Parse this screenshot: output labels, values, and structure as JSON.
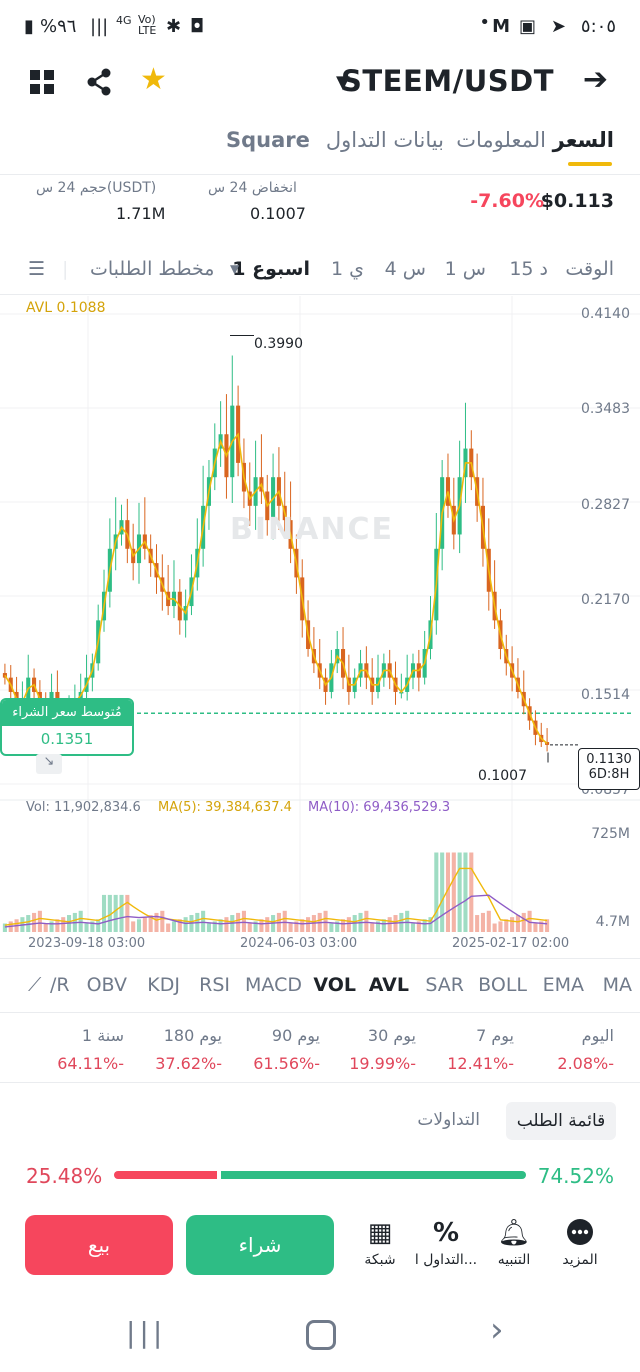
{
  "status_bar": {
    "time": "٥:٠٥",
    "battery": "%٩٦",
    "net1": "4G",
    "net2": "Vo) LTE"
  },
  "header": {
    "pair": "STEEM/USDT"
  },
  "tabs": [
    {
      "label": "السعر",
      "active": true
    },
    {
      "label": "المعلومات",
      "active": false
    },
    {
      "label": "بيانات التداول",
      "active": false
    },
    {
      "label": "Square",
      "active": false
    }
  ],
  "ticker": {
    "price": "$0.113",
    "change": "-7.60%",
    "low_label": "انخفاض 24 س",
    "low_value": "0.1007",
    "vol_label": "حجم 24 س(USDT)",
    "vol_value": "1.71M"
  },
  "timeframes": {
    "label": "الوقت",
    "items": [
      "15 د",
      "1 س",
      "4 س",
      "1 ي",
      "1 اسبوع"
    ],
    "depth": "مخطط الطلبات",
    "selected": "1 اسبوع"
  },
  "chart_data": {
    "type": "candlestick",
    "avl_label": "AVL 0.1088",
    "y_ticks": [
      "0.4140",
      "0.3483",
      "0.2827",
      "0.2170",
      "0.1514",
      "0.0857"
    ],
    "ylim": [
      0.0857,
      0.414
    ],
    "max_label": "0.3990",
    "min_label": "0.1007",
    "current_price": "0.1130",
    "countdown": "6D:8H",
    "avg_buy_label": "مُتوسط سعر الشراء",
    "avg_buy_value": "0.1351",
    "watermark": "BINANCE",
    "x_ticks": [
      "2023-09-18 03:00",
      "2024-06-03 03:00",
      "2025-02-17 02:00"
    ],
    "volume": {
      "vol": "Vol: 11,902,834.6",
      "ma5": "MA(5): 39,384,637.4",
      "ma10": "MA(10): 69,436,529.3",
      "y_ticks": [
        "725M",
        "4.7M"
      ]
    },
    "closes": [
      0.16,
      0.15,
      0.14,
      0.145,
      0.16,
      0.15,
      0.14,
      0.13,
      0.15,
      0.14,
      0.135,
      0.14,
      0.145,
      0.15,
      0.16,
      0.17,
      0.2,
      0.22,
      0.25,
      0.26,
      0.27,
      0.25,
      0.24,
      0.26,
      0.25,
      0.24,
      0.23,
      0.22,
      0.21,
      0.22,
      0.2,
      0.21,
      0.23,
      0.25,
      0.28,
      0.3,
      0.32,
      0.33,
      0.3,
      0.35,
      0.31,
      0.29,
      0.28,
      0.3,
      0.29,
      0.27,
      0.3,
      0.28,
      0.27,
      0.25,
      0.23,
      0.2,
      0.18,
      0.17,
      0.16,
      0.15,
      0.17,
      0.18,
      0.16,
      0.15,
      0.16,
      0.17,
      0.16,
      0.15,
      0.16,
      0.17,
      0.16,
      0.15,
      0.15,
      0.16,
      0.17,
      0.16,
      0.18,
      0.2,
      0.25,
      0.3,
      0.28,
      0.26,
      0.3,
      0.32,
      0.3,
      0.28,
      0.25,
      0.22,
      0.2,
      0.18,
      0.17,
      0.16,
      0.15,
      0.14,
      0.13,
      0.12,
      0.115,
      0.113
    ]
  },
  "indicators": [
    "MA",
    "EMA",
    "BOLL",
    "SAR",
    "AVL",
    "VOL",
    "MACD",
    "RSI",
    "KDJ",
    "OBV",
    "/R"
  ],
  "performance": [
    {
      "label": "اليوم",
      "value": "2.08%-"
    },
    {
      "label": "7 يوم",
      "value": "12.41%-"
    },
    {
      "label": "30 يوم",
      "value": "19.99%-"
    },
    {
      "label": "90 يوم",
      "value": "61.56%-"
    },
    {
      "label": "180 يوم",
      "value": "37.62%-"
    },
    {
      "label": "1 سنة",
      "value": "64.11%-"
    }
  ],
  "orderbook": {
    "tab_active": "قائمة الطلب",
    "tab_other": "التداولات",
    "sell_pct": "25.48%",
    "buy_pct": "74.52%",
    "sell_ratio": 0.2548
  },
  "bottom_bar": {
    "more": "المزيد",
    "alert": "التنبيه",
    "trade": "التداول ا...",
    "grid": "شبكة",
    "buy": "شراء",
    "sell": "بيع"
  },
  "colors": {
    "green": "#2ebd85",
    "red": "#f6465d",
    "yellow": "#f0b90b",
    "purple": "#8e5cc6"
  }
}
